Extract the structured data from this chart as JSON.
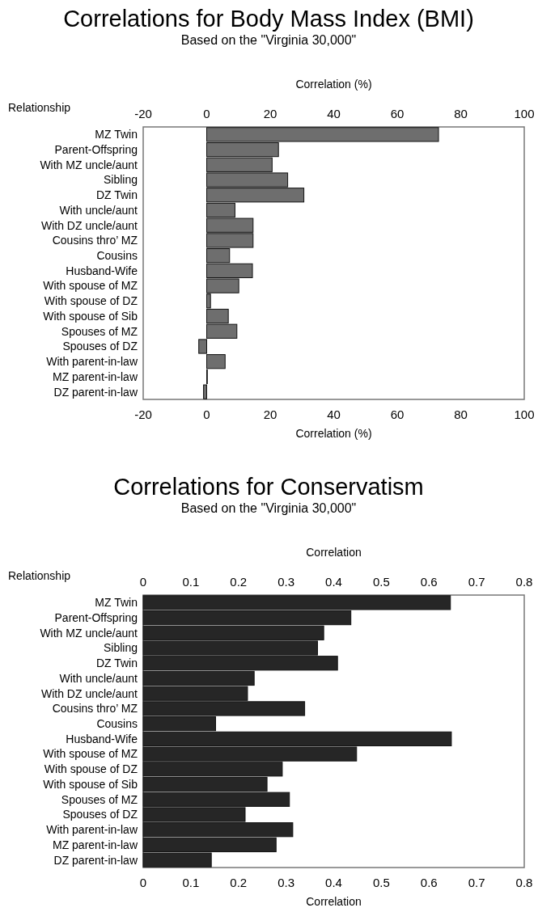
{
  "chart_data": [
    {
      "type": "bar",
      "orientation": "horizontal",
      "title": "Correlations for Body Mass Index (BMI)",
      "subtitle": "Based on the \"Virginia 30,000\"",
      "xlabel": "Correlation (%)",
      "x2label": "Correlation (%)",
      "ylabel": "Relationship",
      "categories": [
        "MZ Twin",
        "Parent-Offspring",
        "With MZ uncle/aunt",
        "Sibling",
        "DZ Twin",
        "With uncle/aunt",
        "With DZ uncle/aunt",
        "Cousins thro’ MZ",
        "Cousins",
        "Husband-Wife",
        "With spouse of MZ",
        "With spouse of DZ",
        "With spouse of Sib",
        "Spouses of MZ",
        "Spouses of DZ",
        "With parent-in-law",
        "MZ parent-in-law",
        "DZ parent-in-law"
      ],
      "values": [
        73,
        22.6,
        20.6,
        25.5,
        30.6,
        8.9,
        14.6,
        14.6,
        7.2,
        14.4,
        10.1,
        1.2,
        6.8,
        9.5,
        -2.5,
        5.8,
        0.2,
        -1
      ],
      "color": "#6e6e6e",
      "xlim": [
        -20,
        100
      ],
      "xticks": [
        -20,
        0,
        20,
        40,
        60,
        80,
        100
      ],
      "x2lim": [
        -20,
        100
      ],
      "x2ticks": [
        -20,
        0,
        20,
        40,
        60,
        80,
        100
      ],
      "grid": false
    },
    {
      "type": "bar",
      "orientation": "horizontal",
      "title": "Correlations for Conservatism",
      "subtitle": "Based on the \"Virginia 30,000\"",
      "xlabel": "Correlation",
      "x2label": "Correlation",
      "ylabel": "Relationship",
      "categories": [
        "MZ Twin",
        "Parent-Offspring",
        "With MZ uncle/aunt",
        "Sibling",
        "DZ Twin",
        "With uncle/aunt",
        "With DZ uncle/aunt",
        "Cousins thro’ MZ",
        "Cousins",
        "Husband-Wife",
        "With spouse of MZ",
        "With spouse of DZ",
        "With spouse of Sib",
        "Spouses of MZ",
        "Spouses of DZ",
        "With parent-in-law",
        "MZ parent-in-law",
        "DZ parent-in-law"
      ],
      "values": [
        0.645,
        0.436,
        0.379,
        0.366,
        0.408,
        0.233,
        0.219,
        0.339,
        0.152,
        0.647,
        0.448,
        0.292,
        0.26,
        0.307,
        0.214,
        0.314,
        0.279,
        0.143
      ],
      "color": "#262626",
      "xlim": [
        0,
        0.8
      ],
      "xticks": [
        0,
        0.1,
        0.2,
        0.3,
        0.4,
        0.5,
        0.6,
        0.7,
        0.8
      ],
      "x2lim": [
        0,
        0.8
      ],
      "x2ticks": [
        0,
        0.1,
        0.2,
        0.3,
        0.4,
        0.5,
        0.6,
        0.7,
        0.8
      ],
      "grid": false
    }
  ]
}
